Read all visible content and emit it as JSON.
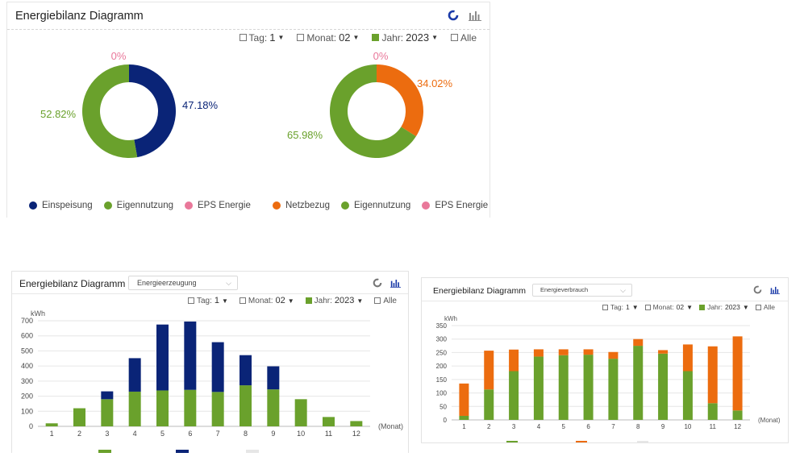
{
  "panel1": {
    "title": "Energiebilanz Diagramm",
    "icons": [
      "donut-chart-icon",
      "bar-chart-icon"
    ],
    "filters": {
      "tag_label": "Tag:",
      "tag_value": "1",
      "monat_label": "Monat:",
      "monat_value": "02",
      "jahr_label": "Jahr:",
      "jahr_value": "2023",
      "alle_label": "Alle"
    },
    "donut_left": {
      "legend": [
        "Einspeisung",
        "Eigennutzung",
        "EPS Energie"
      ],
      "labels": {
        "eps": "0%",
        "main": "47.18%",
        "own": "52.82%"
      }
    },
    "donut_right": {
      "legend": [
        "Netzbezug",
        "Eigennutzung",
        "EPS Energie"
      ],
      "labels": {
        "eps": "0%",
        "main": "34.02%",
        "own": "65.98%"
      }
    }
  },
  "panel2": {
    "title": "Energiebilanz Diagramm",
    "dropdown": "Energieerzeugung",
    "filters": {
      "tag_label": "Tag:",
      "tag_value": "1",
      "monat_label": "Monat:",
      "monat_value": "02",
      "jahr_label": "Jahr:",
      "jahr_value": "2023",
      "alle_label": "Alle"
    }
  },
  "panel3": {
    "title": "Energiebilanz Diagramm",
    "dropdown": "Energieverbrauch",
    "filters": {
      "tag_label": "Tag:",
      "tag_value": "1",
      "monat_label": "Monat:",
      "monat_value": "02",
      "jahr_label": "Jahr:",
      "jahr_value": "2023",
      "alle_label": "Alle"
    }
  },
  "colors": {
    "navy": "#0a2477",
    "green": "#6aa12c",
    "orange": "#ec6c0f",
    "pink": "#e9789a",
    "grid": "#e6e6e6"
  },
  "chart_data": [
    {
      "type": "pie",
      "categories": [
        "Einspeisung",
        "Eigennutzung",
        "EPS Energie"
      ],
      "values": [
        47.18,
        52.82,
        0
      ],
      "colors": [
        "#0a2477",
        "#6aa12c",
        "#e9789a"
      ]
    },
    {
      "type": "pie",
      "categories": [
        "Netzbezug",
        "Eigennutzung",
        "EPS Energie"
      ],
      "values": [
        34.02,
        65.98,
        0
      ],
      "colors": [
        "#ec6c0f",
        "#6aa12c",
        "#e9789a"
      ]
    },
    {
      "type": "bar",
      "stacked": true,
      "ylabel": "kWh",
      "xlabel": "(Monat)",
      "categories": [
        "1",
        "2",
        "3",
        "4",
        "5",
        "6",
        "7",
        "8",
        "9",
        "10",
        "11",
        "12"
      ],
      "yticks": [
        "0",
        "100",
        "200",
        "300",
        "400",
        "500",
        "600",
        "700"
      ],
      "ylim": [
        0,
        700
      ],
      "series": [
        {
          "values": [
            20,
            120,
            180,
            230,
            238,
            242,
            228,
            272,
            245,
            180,
            62,
            35
          ],
          "color": "#6aa12c"
        },
        {
          "values": [
            0,
            0,
            52,
            222,
            437,
            453,
            330,
            200,
            153,
            0,
            0,
            0
          ],
          "color": "#0a2477"
        }
      ]
    },
    {
      "type": "bar",
      "stacked": true,
      "ylabel": "kWh",
      "xlabel": "(Monat)",
      "categories": [
        "1",
        "2",
        "3",
        "4",
        "5",
        "6",
        "7",
        "8",
        "9",
        "10",
        "11",
        "12"
      ],
      "yticks": [
        "0",
        "50",
        "100",
        "150",
        "200",
        "250",
        "300",
        "350"
      ],
      "ylim": [
        0,
        350
      ],
      "series": [
        {
          "values": [
            15,
            113,
            181,
            235,
            240,
            242,
            227,
            275,
            246,
            181,
            62,
            35
          ],
          "color": "#6aa12c"
        },
        {
          "values": [
            120,
            144,
            80,
            27,
            22,
            20,
            25,
            25,
            13,
            99,
            211,
            275
          ],
          "color": "#ec6c0f"
        }
      ]
    }
  ]
}
